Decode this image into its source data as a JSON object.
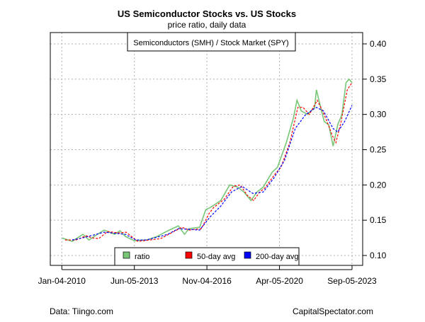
{
  "chart_data": {
    "type": "line",
    "title": "US Semiconductor Stocks vs. US Stocks",
    "subtitle": "price ratio, daily data",
    "inner_label": "Semiconductors (SMH) / Stock Market (SPY)",
    "ylim": [
      0.085,
      0.415
    ],
    "y_ticks": [
      "0.10",
      "0.15",
      "0.20",
      "0.25",
      "0.30",
      "0.35",
      "0.40"
    ],
    "y_tick_values": [
      0.1,
      0.15,
      0.2,
      0.25,
      0.3,
      0.35,
      0.4
    ],
    "y_axis_side": "right",
    "x_ticks": [
      "Jan-04-2010",
      "Jun-05-2013",
      "Nov-04-2016",
      "Apr-05-2020",
      "Sep-05-2023"
    ],
    "x_tick_dates": [
      "2010-01-04",
      "2013-06-05",
      "2016-11-04",
      "2020-04-05",
      "2023-09-05"
    ],
    "grid": true,
    "legend_placement": "bottom",
    "series": [
      {
        "name": "ratio",
        "color": "#77c777",
        "style": "solid",
        "x": [
          "2010-01-04",
          "2010-07-01",
          "2011-01-01",
          "2011-04-15",
          "2011-08-01",
          "2012-01-01",
          "2012-07-01",
          "2012-10-01",
          "2013-01-01",
          "2013-06-01",
          "2014-01-01",
          "2014-07-01",
          "2015-01-01",
          "2015-07-01",
          "2015-10-15",
          "2016-01-01",
          "2016-07-01",
          "2016-10-15",
          "2017-01-01",
          "2017-07-01",
          "2017-12-01",
          "2018-04-15",
          "2018-08-01",
          "2018-12-01",
          "2019-03-15",
          "2019-07-01",
          "2019-12-01",
          "2020-03-01",
          "2020-08-01",
          "2020-12-01",
          "2021-02-01",
          "2021-04-15",
          "2021-08-01",
          "2021-12-01",
          "2022-01-01",
          "2022-03-15",
          "2022-05-15",
          "2022-08-01",
          "2022-10-15",
          "2023-01-01",
          "2023-03-15",
          "2023-05-25",
          "2023-07-15",
          "2023-09-05"
        ],
        "y": [
          0.125,
          0.12,
          0.13,
          0.122,
          0.128,
          0.136,
          0.13,
          0.135,
          0.127,
          0.121,
          0.122,
          0.127,
          0.135,
          0.142,
          0.13,
          0.138,
          0.14,
          0.165,
          0.168,
          0.178,
          0.2,
          0.197,
          0.19,
          0.178,
          0.19,
          0.197,
          0.218,
          0.225,
          0.26,
          0.295,
          0.32,
          0.305,
          0.3,
          0.31,
          0.335,
          0.31,
          0.29,
          0.285,
          0.255,
          0.285,
          0.3,
          0.345,
          0.35,
          0.345
        ]
      },
      {
        "name": "50-day avg",
        "color": "#ff0000",
        "style": "dashed",
        "x": [
          "2010-03-01",
          "2010-09-01",
          "2011-03-01",
          "2011-06-01",
          "2011-10-01",
          "2012-03-01",
          "2012-09-01",
          "2013-01-15",
          "2013-08-01",
          "2014-03-01",
          "2014-09-01",
          "2015-03-01",
          "2015-09-01",
          "2016-01-01",
          "2016-08-01",
          "2016-12-15",
          "2017-03-01",
          "2017-09-01",
          "2018-02-01",
          "2018-06-01",
          "2018-10-01",
          "2019-01-15",
          "2019-05-01",
          "2019-08-01",
          "2020-01-15",
          "2020-05-01",
          "2020-10-01",
          "2021-02-15",
          "2021-05-15",
          "2021-09-01",
          "2022-01-15",
          "2022-04-15",
          "2022-07-01",
          "2022-10-01",
          "2022-12-01",
          "2023-03-01",
          "2023-06-15",
          "2023-09-05"
        ],
        "y": [
          0.122,
          0.122,
          0.128,
          0.125,
          0.124,
          0.134,
          0.132,
          0.133,
          0.12,
          0.122,
          0.124,
          0.132,
          0.14,
          0.136,
          0.138,
          0.16,
          0.168,
          0.18,
          0.198,
          0.2,
          0.185,
          0.178,
          0.19,
          0.196,
          0.215,
          0.225,
          0.26,
          0.31,
          0.31,
          0.3,
          0.32,
          0.305,
          0.29,
          0.27,
          0.26,
          0.29,
          0.335,
          0.345
        ]
      },
      {
        "name": "200-day avg",
        "color": "#0000ff",
        "style": "dashed",
        "x": [
          "2010-07-01",
          "2011-01-01",
          "2012-01-01",
          "2013-01-01",
          "2013-07-01",
          "2014-01-01",
          "2015-01-01",
          "2015-07-01",
          "2016-07-01",
          "2017-01-01",
          "2017-07-01",
          "2018-01-01",
          "2018-07-01",
          "2019-01-01",
          "2019-07-01",
          "2020-01-01",
          "2020-07-01",
          "2021-01-01",
          "2021-07-01",
          "2022-01-01",
          "2022-05-01",
          "2022-10-15",
          "2023-01-01",
          "2023-05-01",
          "2023-09-05"
        ],
        "y": [
          0.122,
          0.125,
          0.133,
          0.13,
          0.122,
          0.122,
          0.13,
          0.138,
          0.136,
          0.155,
          0.17,
          0.19,
          0.198,
          0.188,
          0.19,
          0.21,
          0.235,
          0.28,
          0.3,
          0.31,
          0.305,
          0.28,
          0.275,
          0.29,
          0.313
        ]
      }
    ],
    "footer_left": "Data: Tiingo.com",
    "footer_right": "CapitalSpectator.com"
  }
}
